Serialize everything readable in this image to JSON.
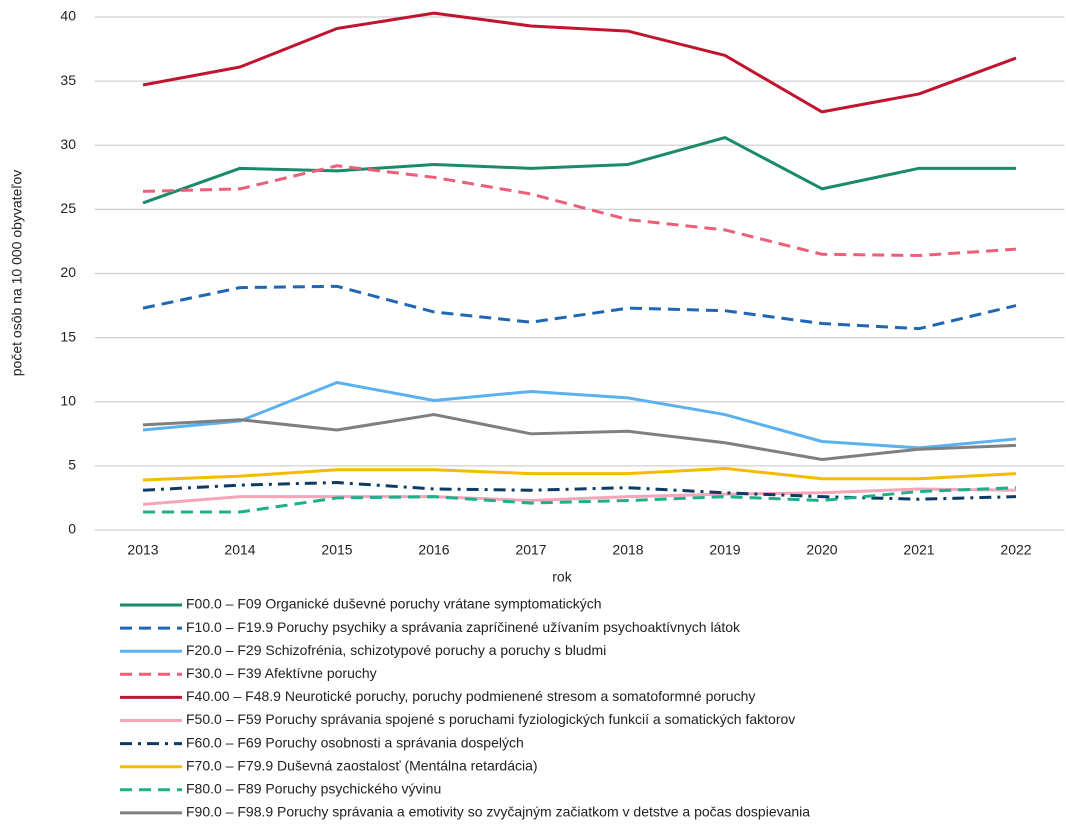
{
  "chart_data": {
    "type": "line",
    "x_label": "rok",
    "y_label": "počet osôb na 10 000 obyvateľov",
    "categories": [
      "2013",
      "2014",
      "2015",
      "2016",
      "2017",
      "2018",
      "2019",
      "2020",
      "2021",
      "2022"
    ],
    "ylim": [
      0,
      40
    ],
    "yticks": [
      0,
      5,
      10,
      15,
      20,
      25,
      30,
      35,
      40
    ],
    "grid": true,
    "legend": "bottom",
    "series": [
      {
        "name": "F00.0 – F09 Organické duševné poruchy vrátane symptomatických",
        "color": "#1a8a6a",
        "dash": "solid",
        "values": [
          25.5,
          28.2,
          28.0,
          28.5,
          28.2,
          28.5,
          30.6,
          26.6,
          28.2,
          28.2
        ]
      },
      {
        "name": "F10.0 – F19.9 Poruchy psychiky a správania zapríčinené užívaním psychoaktívnych látok",
        "color": "#1f66b5",
        "dash": "dashed",
        "values": [
          17.3,
          18.9,
          19.0,
          17.0,
          16.2,
          17.3,
          17.1,
          16.1,
          15.7,
          17.5
        ]
      },
      {
        "name": "F20.0 – F29 Schizofrénia, schizotypové poruchy a poruchy s bludmi",
        "color": "#5bb0f0",
        "dash": "solid",
        "values": [
          7.8,
          8.5,
          11.5,
          10.1,
          10.8,
          10.3,
          9.0,
          6.9,
          6.4,
          7.1
        ]
      },
      {
        "name": "F30.0 – F39 Afektívne poruchy",
        "color": "#eb5f78",
        "dash": "dashed",
        "values": [
          26.4,
          26.6,
          28.4,
          27.5,
          26.2,
          24.2,
          23.4,
          21.5,
          21.4,
          21.9
        ]
      },
      {
        "name": "F40.00 – F48.9 Neurotické poruchy, poruchy podmienené stresom a somatoformné poruchy",
        "color": "#c0142f",
        "dash": "solid",
        "values": [
          34.7,
          36.1,
          39.1,
          40.3,
          39.3,
          38.9,
          37.0,
          32.6,
          34.0,
          36.8
        ]
      },
      {
        "name": "F50.0 – F59 Poruchy správania spojené s poruchami fyziologických funkcií a somatických faktorov",
        "color": "#f4a6b8",
        "dash": "solid",
        "values": [
          2.0,
          2.6,
          2.6,
          2.6,
          2.3,
          2.6,
          2.8,
          2.9,
          3.2,
          3.1
        ]
      },
      {
        "name": "F60.0 – F69 Poruchy osobnosti a správania dospelých",
        "color": "#0d3b66",
        "dash": "dashdot",
        "values": [
          3.1,
          3.5,
          3.7,
          3.2,
          3.1,
          3.3,
          2.9,
          2.6,
          2.4,
          2.6
        ]
      },
      {
        "name": "F70.0 – F79.9 Duševná zaostalosť (Mentálna retardácia)",
        "color": "#f5bb00",
        "dash": "solid",
        "values": [
          3.9,
          4.2,
          4.7,
          4.7,
          4.4,
          4.4,
          4.8,
          4.0,
          4.0,
          4.4
        ]
      },
      {
        "name": "F80.0 – F89 Poruchy psychického vývinu",
        "color": "#1fb08a",
        "dash": "dashed",
        "values": [
          1.4,
          1.4,
          2.5,
          2.6,
          2.1,
          2.3,
          2.6,
          2.3,
          3.0,
          3.3
        ]
      },
      {
        "name": "F90.0 – F98.9 Poruchy správania a emotivity so zvyčajným začiatkom v detstve a počas dospievania",
        "color": "#7f7f7f",
        "dash": "solid",
        "values": [
          8.2,
          8.6,
          7.8,
          9.0,
          7.5,
          7.7,
          6.8,
          5.5,
          6.3,
          6.6
        ]
      }
    ]
  }
}
